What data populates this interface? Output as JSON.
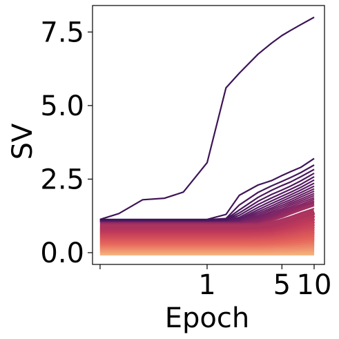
{
  "chart_data": {
    "type": "line",
    "title": "",
    "xlabel": "Epoch",
    "ylabel": "SV",
    "x_scale": "log",
    "x_ticks": [
      {
        "value": 0.1,
        "label": ""
      },
      {
        "value": 1,
        "label": "1"
      },
      {
        "value": 5,
        "label": "5"
      },
      {
        "value": 10,
        "label": "10"
      }
    ],
    "y_ticks": [
      {
        "value": 0.0,
        "label": "0.0"
      },
      {
        "value": 2.5,
        "label": "2.5"
      },
      {
        "value": 5.0,
        "label": "5.0"
      },
      {
        "value": 7.5,
        "label": "7.5"
      }
    ],
    "xlim": [
      0.085,
      12.5
    ],
    "ylim": [
      -0.4,
      8.4
    ],
    "grid": false,
    "legend": "none",
    "colormap": [
      "#f6b47f",
      "#e6665a",
      "#c23b5a",
      "#8c2864",
      "#5e1e66",
      "#3c1456"
    ],
    "x": [
      0.1,
      0.15,
      0.25,
      0.4,
      0.6,
      1,
      1.5,
      2,
      3,
      4,
      5,
      6,
      7.5,
      10
    ],
    "series": [
      {
        "values": [
          1.13,
          1.33,
          1.8,
          1.85,
          2.06,
          3.06,
          5.6,
          6.1,
          6.75,
          7.12,
          7.38,
          7.55,
          7.75,
          8.0
        ]
      },
      {
        "values": [
          1.13,
          1.13,
          1.13,
          1.13,
          1.13,
          1.13,
          1.3,
          1.95,
          2.3,
          2.45,
          2.62,
          2.75,
          2.9,
          3.2
        ]
      },
      {
        "values": [
          1.12,
          1.12,
          1.12,
          1.12,
          1.12,
          1.12,
          1.16,
          1.62,
          2.05,
          2.27,
          2.42,
          2.55,
          2.72,
          2.98
        ]
      },
      {
        "values": [
          1.12,
          1.12,
          1.12,
          1.12,
          1.12,
          1.12,
          1.14,
          1.45,
          1.88,
          2.12,
          2.28,
          2.4,
          2.58,
          2.83
        ]
      },
      {
        "values": [
          1.11,
          1.11,
          1.11,
          1.11,
          1.11,
          1.11,
          1.12,
          1.35,
          1.75,
          1.98,
          2.13,
          2.26,
          2.44,
          2.7
        ]
      },
      {
        "values": [
          1.1,
          1.1,
          1.1,
          1.1,
          1.1,
          1.1,
          1.11,
          1.27,
          1.64,
          1.86,
          2.02,
          2.15,
          2.32,
          2.58
        ]
      },
      {
        "values": [
          1.1,
          1.1,
          1.1,
          1.1,
          1.1,
          1.1,
          1.1,
          1.2,
          1.54,
          1.76,
          1.92,
          2.05,
          2.22,
          2.47
        ]
      },
      {
        "values": [
          1.09,
          1.09,
          1.09,
          1.09,
          1.09,
          1.09,
          1.09,
          1.15,
          1.46,
          1.67,
          1.83,
          1.96,
          2.13,
          2.36
        ]
      },
      {
        "values": [
          1.09,
          1.09,
          1.09,
          1.09,
          1.09,
          1.09,
          1.09,
          1.12,
          1.39,
          1.59,
          1.75,
          1.88,
          2.04,
          2.26
        ]
      },
      {
        "values": [
          1.08,
          1.08,
          1.08,
          1.08,
          1.08,
          1.08,
          1.08,
          1.1,
          1.33,
          1.52,
          1.68,
          1.8,
          1.96,
          2.17
        ]
      },
      {
        "values": [
          1.08,
          1.08,
          1.08,
          1.08,
          1.08,
          1.08,
          1.08,
          1.09,
          1.27,
          1.46,
          1.61,
          1.73,
          1.89,
          2.09
        ]
      },
      {
        "values": [
          1.07,
          1.07,
          1.07,
          1.07,
          1.07,
          1.07,
          1.07,
          1.08,
          1.22,
          1.4,
          1.55,
          1.67,
          1.82,
          2.01
        ]
      },
      {
        "values": [
          1.07,
          1.07,
          1.07,
          1.07,
          1.07,
          1.07,
          1.07,
          1.07,
          1.18,
          1.35,
          1.49,
          1.61,
          1.76,
          1.94
        ]
      },
      {
        "values": [
          1.06,
          1.06,
          1.06,
          1.06,
          1.06,
          1.06,
          1.06,
          1.06,
          1.14,
          1.3,
          1.44,
          1.55,
          1.7,
          1.87
        ]
      },
      {
        "values": [
          1.05,
          1.05,
          1.05,
          1.05,
          1.05,
          1.05,
          1.05,
          1.05,
          1.1,
          1.25,
          1.39,
          1.5,
          1.64,
          1.81
        ]
      },
      {
        "values": [
          1.04,
          1.04,
          1.04,
          1.04,
          1.04,
          1.04,
          1.04,
          1.04,
          1.07,
          1.21,
          1.34,
          1.45,
          1.59,
          1.75
        ]
      },
      {
        "values": [
          1.03,
          1.03,
          1.03,
          1.03,
          1.03,
          1.03,
          1.03,
          1.03,
          1.05,
          1.17,
          1.3,
          1.4,
          1.54,
          1.7
        ]
      },
      {
        "values": [
          1.02,
          1.02,
          1.02,
          1.02,
          1.02,
          1.02,
          1.02,
          1.02,
          1.03,
          1.13,
          1.25,
          1.36,
          1.49,
          1.65
        ]
      },
      {
        "values": [
          1.0,
          1.0,
          1.0,
          1.0,
          1.0,
          1.0,
          1.0,
          1.0,
          1.01,
          1.09,
          1.2,
          1.31,
          1.44,
          1.6
        ]
      },
      {
        "values": [
          0.95,
          0.95,
          0.95,
          0.95,
          0.95,
          0.95,
          0.95,
          0.95,
          0.96,
          1.02,
          1.12,
          1.22,
          1.35,
          1.5
        ]
      },
      {
        "values": [
          0.9,
          0.9,
          0.9,
          0.9,
          0.9,
          0.9,
          0.9,
          0.9,
          0.91,
          0.96,
          1.05,
          1.14,
          1.26,
          1.4
        ]
      },
      {
        "values": [
          0.85,
          0.85,
          0.85,
          0.85,
          0.85,
          0.85,
          0.85,
          0.85,
          0.86,
          0.9,
          0.98,
          1.06,
          1.17,
          1.3
        ]
      },
      {
        "values": [
          0.8,
          0.8,
          0.8,
          0.8,
          0.8,
          0.8,
          0.8,
          0.8,
          0.81,
          0.84,
          0.91,
          0.98,
          1.08,
          1.2
        ]
      },
      {
        "values": [
          0.75,
          0.75,
          0.75,
          0.75,
          0.75,
          0.75,
          0.75,
          0.75,
          0.76,
          0.79,
          0.85,
          0.91,
          1.0,
          1.11
        ]
      },
      {
        "values": [
          0.7,
          0.7,
          0.7,
          0.7,
          0.7,
          0.7,
          0.7,
          0.7,
          0.71,
          0.73,
          0.79,
          0.84,
          0.92,
          1.02
        ]
      },
      {
        "values": [
          0.65,
          0.65,
          0.65,
          0.65,
          0.65,
          0.65,
          0.65,
          0.65,
          0.66,
          0.68,
          0.73,
          0.78,
          0.85,
          0.94
        ]
      },
      {
        "values": [
          0.6,
          0.6,
          0.6,
          0.6,
          0.6,
          0.6,
          0.6,
          0.6,
          0.61,
          0.63,
          0.67,
          0.71,
          0.78,
          0.86
        ]
      },
      {
        "values": [
          0.55,
          0.55,
          0.55,
          0.55,
          0.55,
          0.55,
          0.55,
          0.55,
          0.56,
          0.57,
          0.61,
          0.65,
          0.71,
          0.78
        ]
      },
      {
        "values": [
          0.5,
          0.5,
          0.5,
          0.5,
          0.5,
          0.5,
          0.5,
          0.5,
          0.51,
          0.52,
          0.55,
          0.59,
          0.64,
          0.71
        ]
      },
      {
        "values": [
          0.45,
          0.45,
          0.45,
          0.45,
          0.45,
          0.45,
          0.45,
          0.45,
          0.46,
          0.47,
          0.5,
          0.53,
          0.57,
          0.63
        ]
      },
      {
        "values": [
          0.4,
          0.4,
          0.4,
          0.4,
          0.4,
          0.4,
          0.4,
          0.4,
          0.4,
          0.41,
          0.44,
          0.46,
          0.5,
          0.55
        ]
      },
      {
        "values": [
          0.35,
          0.35,
          0.35,
          0.35,
          0.35,
          0.35,
          0.35,
          0.35,
          0.35,
          0.36,
          0.38,
          0.4,
          0.43,
          0.48
        ]
      },
      {
        "values": [
          0.3,
          0.3,
          0.3,
          0.3,
          0.3,
          0.3,
          0.3,
          0.3,
          0.3,
          0.31,
          0.32,
          0.34,
          0.37,
          0.4
        ]
      },
      {
        "values": [
          0.25,
          0.25,
          0.25,
          0.25,
          0.25,
          0.25,
          0.25,
          0.25,
          0.25,
          0.26,
          0.27,
          0.28,
          0.3,
          0.33
        ]
      },
      {
        "values": [
          0.2,
          0.2,
          0.2,
          0.2,
          0.2,
          0.2,
          0.2,
          0.2,
          0.2,
          0.21,
          0.22,
          0.23,
          0.24,
          0.26
        ]
      },
      {
        "values": [
          0.15,
          0.15,
          0.15,
          0.15,
          0.15,
          0.15,
          0.15,
          0.15,
          0.15,
          0.15,
          0.16,
          0.17,
          0.18,
          0.19
        ]
      },
      {
        "values": [
          0.1,
          0.1,
          0.1,
          0.1,
          0.1,
          0.1,
          0.1,
          0.1,
          0.1,
          0.1,
          0.11,
          0.11,
          0.12,
          0.13
        ]
      },
      {
        "values": [
          0.05,
          0.05,
          0.05,
          0.05,
          0.05,
          0.05,
          0.05,
          0.05,
          0.05,
          0.05,
          0.05,
          0.06,
          0.06,
          0.06
        ]
      },
      {
        "values": [
          0.01,
          0.01,
          0.01,
          0.01,
          0.01,
          0.01,
          0.01,
          0.01,
          0.01,
          0.01,
          0.01,
          0.01,
          0.01,
          0.01
        ]
      }
    ]
  }
}
